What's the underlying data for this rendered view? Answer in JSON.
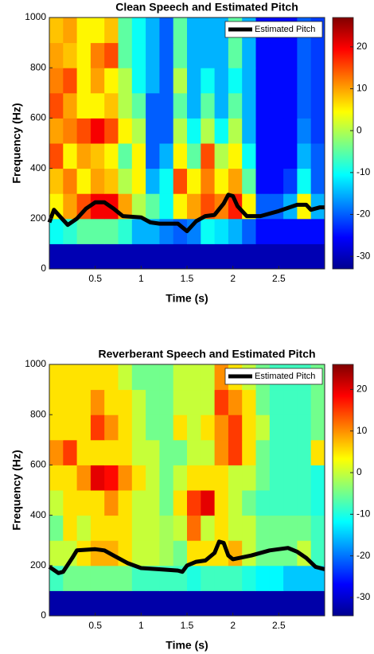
{
  "chart_data": [
    {
      "type": "heatmap",
      "title": "Clean Speech and Estimated Pitch",
      "xlabel": "Time (s)",
      "ylabel": "Frequency (Hz)",
      "xbins": [
        0,
        0.15,
        0.3,
        0.45,
        0.6,
        0.75,
        0.9,
        1.05,
        1.2,
        1.35,
        1.5,
        1.65,
        1.8,
        1.95,
        2.1,
        2.25,
        2.4,
        2.55,
        2.7,
        2.85,
        3
      ],
      "ybins": [
        0,
        100,
        200,
        300,
        400,
        500,
        600,
        700,
        800,
        900,
        1000
      ],
      "z": [
        [
          -30,
          -30,
          -30,
          -30,
          -30,
          -30,
          -30,
          -30,
          -30,
          -30,
          -30,
          -30,
          -30,
          -30,
          -30,
          -30,
          -30,
          -30,
          -30,
          -30
        ],
        [
          -10,
          -8,
          -5,
          -5,
          -5,
          -8,
          -15,
          -15,
          -18,
          -20,
          -18,
          -10,
          -12,
          -15,
          -20,
          -25,
          -25,
          -25,
          -25,
          -25
        ],
        [
          5,
          10,
          15,
          20,
          20,
          10,
          0,
          -5,
          -10,
          5,
          10,
          15,
          12,
          18,
          5,
          -20,
          -20,
          -15,
          5,
          -15
        ],
        [
          8,
          12,
          5,
          10,
          8,
          0,
          5,
          -15,
          -10,
          15,
          5,
          12,
          5,
          10,
          -5,
          -25,
          -25,
          -22,
          -10,
          -20
        ],
        [
          15,
          5,
          10,
          8,
          5,
          -5,
          5,
          -20,
          -15,
          5,
          -5,
          15,
          0,
          5,
          -10,
          -25,
          -25,
          -25,
          -15,
          -20
        ],
        [
          10,
          12,
          15,
          20,
          15,
          5,
          0,
          -20,
          -20,
          0,
          -10,
          0,
          -10,
          0,
          -15,
          -25,
          -25,
          -25,
          -18,
          -22
        ],
        [
          15,
          10,
          5,
          5,
          8,
          0,
          -5,
          -20,
          -20,
          -5,
          -15,
          -5,
          -15,
          -5,
          -15,
          -25,
          -25,
          -25,
          -20,
          -22
        ],
        [
          12,
          15,
          5,
          10,
          5,
          0,
          -10,
          -15,
          -20,
          0,
          -15,
          -10,
          -15,
          -10,
          -15,
          -25,
          -25,
          -25,
          -20,
          -22
        ],
        [
          10,
          8,
          5,
          12,
          15,
          -5,
          -10,
          -15,
          -20,
          -5,
          -15,
          -15,
          -15,
          -5,
          -15,
          -25,
          -25,
          -25,
          -20,
          -22
        ],
        [
          8,
          10,
          5,
          5,
          8,
          -5,
          -10,
          -15,
          -20,
          -5,
          -15,
          -15,
          -15,
          -5,
          -15,
          -25,
          -25,
          -25,
          -20,
          -22
        ]
      ],
      "colormap": "jet",
      "clim": [
        -33,
        27
      ],
      "cticks": [
        -30,
        -20,
        -10,
        0,
        10,
        20
      ],
      "xlim": [
        0,
        3
      ],
      "ylim": [
        0,
        1000
      ],
      "xticks": [
        0.5,
        1,
        1.5,
        2,
        2.5
      ],
      "yticks": [
        0,
        200,
        400,
        600,
        800,
        1000
      ],
      "legend": "upper right",
      "series": [
        {
          "name": "Estimated Pitch",
          "color": "#000000",
          "x": [
            0,
            0.05,
            0.1,
            0.2,
            0.3,
            0.4,
            0.5,
            0.6,
            0.7,
            0.8,
            1.0,
            1.1,
            1.2,
            1.4,
            1.5,
            1.6,
            1.7,
            1.8,
            1.9,
            1.95,
            2.0,
            2.05,
            2.15,
            2.3,
            2.5,
            2.7,
            2.8,
            2.85,
            2.95,
            3
          ],
          "values": [
            185,
            235,
            215,
            175,
            200,
            240,
            265,
            265,
            240,
            210,
            205,
            185,
            180,
            180,
            150,
            190,
            210,
            215,
            260,
            295,
            290,
            250,
            210,
            210,
            230,
            255,
            255,
            235,
            245,
            245
          ]
        }
      ]
    },
    {
      "type": "heatmap",
      "title": "Reverberant Speech and Estimated Pitch",
      "xlabel": "Time (s)",
      "ylabel": "Frequency (Hz)",
      "xbins": [
        0,
        0.15,
        0.3,
        0.45,
        0.6,
        0.75,
        0.9,
        1.05,
        1.2,
        1.35,
        1.5,
        1.65,
        1.8,
        1.95,
        2.1,
        2.25,
        2.4,
        2.55,
        2.7,
        2.85,
        3
      ],
      "ybins": [
        0,
        100,
        200,
        300,
        400,
        500,
        600,
        700,
        800,
        900,
        1000
      ],
      "z": [
        [
          -32,
          -32,
          -32,
          -32,
          -32,
          -32,
          -32,
          -32,
          -32,
          -32,
          -32,
          -32,
          -32,
          -32,
          -32,
          -32,
          -32,
          -32,
          -32,
          -32
        ],
        [
          -8,
          -5,
          -5,
          -5,
          -5,
          -5,
          -8,
          -8,
          -8,
          -8,
          -10,
          -8,
          -8,
          -8,
          -10,
          -12,
          -12,
          -15,
          -15,
          -15
        ],
        [
          0,
          0,
          5,
          8,
          8,
          5,
          0,
          0,
          -2,
          -5,
          5,
          5,
          5,
          8,
          0,
          -5,
          -5,
          -5,
          0,
          -8
        ],
        [
          -5,
          5,
          0,
          5,
          5,
          5,
          0,
          0,
          -2,
          0,
          12,
          0,
          5,
          0,
          0,
          -5,
          -5,
          -5,
          -5,
          -8
        ],
        [
          0,
          5,
          5,
          5,
          10,
          5,
          0,
          0,
          -5,
          5,
          15,
          20,
          5,
          0,
          -5,
          -8,
          -8,
          -8,
          -8,
          -10
        ],
        [
          5,
          5,
          10,
          20,
          18,
          10,
          5,
          0,
          -5,
          0,
          5,
          5,
          5,
          0,
          0,
          -5,
          -8,
          -8,
          -8,
          -10
        ],
        [
          10,
          15,
          5,
          5,
          5,
          5,
          0,
          0,
          -5,
          -5,
          0,
          0,
          10,
          15,
          5,
          -5,
          -8,
          -8,
          -8,
          5
        ],
        [
          5,
          5,
          5,
          15,
          10,
          5,
          0,
          -5,
          -5,
          5,
          0,
          5,
          10,
          15,
          5,
          0,
          -8,
          -8,
          -8,
          -5
        ],
        [
          5,
          5,
          5,
          10,
          5,
          5,
          0,
          -5,
          -5,
          0,
          0,
          0,
          15,
          10,
          5,
          -5,
          -8,
          -8,
          -8,
          -5
        ],
        [
          5,
          5,
          5,
          5,
          5,
          0,
          -5,
          -5,
          -5,
          0,
          0,
          0,
          10,
          5,
          0,
          -5,
          -8,
          -8,
          -8,
          -5
        ]
      ],
      "colormap": "jet",
      "clim": [
        -34.4,
        26
      ],
      "cticks": [
        -30,
        -20,
        -10,
        0,
        10,
        20
      ],
      "xlim": [
        0,
        3
      ],
      "ylim": [
        0,
        1000
      ],
      "xticks": [
        0.5,
        1,
        1.5,
        2,
        2.5
      ],
      "yticks": [
        0,
        200,
        400,
        600,
        800,
        1000
      ],
      "legend": "upper right",
      "series": [
        {
          "name": "Estimated Pitch",
          "color": "#000000",
          "x": [
            0,
            0.1,
            0.15,
            0.25,
            0.3,
            0.5,
            0.6,
            0.7,
            0.85,
            1.0,
            1.2,
            1.4,
            1.45,
            1.5,
            1.6,
            1.7,
            1.8,
            1.85,
            1.9,
            1.95,
            2.0,
            2.2,
            2.4,
            2.6,
            2.7,
            2.8,
            2.9,
            3
          ],
          "values": [
            195,
            170,
            175,
            230,
            260,
            265,
            260,
            240,
            210,
            190,
            185,
            180,
            175,
            200,
            215,
            220,
            250,
            295,
            290,
            240,
            225,
            240,
            260,
            270,
            255,
            230,
            195,
            185
          ]
        }
      ]
    }
  ]
}
